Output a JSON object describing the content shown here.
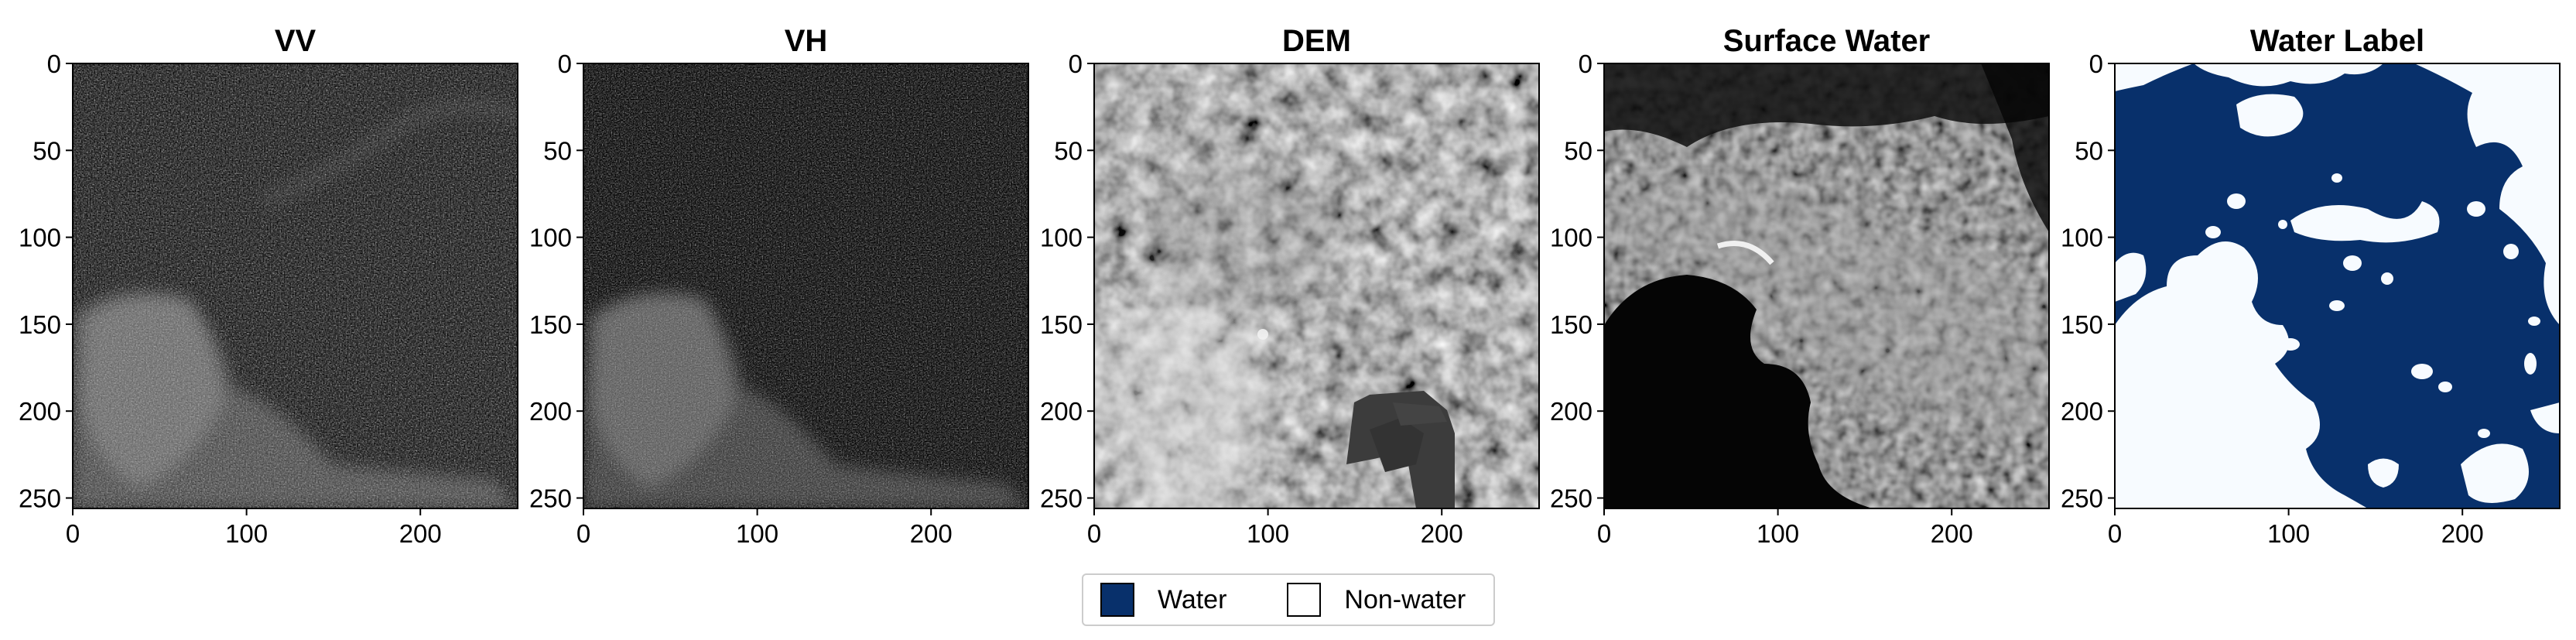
{
  "panels": [
    {
      "title": "VV",
      "kind": "sar-vv"
    },
    {
      "title": "VH",
      "kind": "sar-vh"
    },
    {
      "title": "DEM",
      "kind": "dem"
    },
    {
      "title": "Surface Water",
      "kind": "surface-water"
    },
    {
      "title": "Water Label",
      "kind": "water-label"
    }
  ],
  "axes": {
    "x_ticks": [
      "0",
      "100",
      "200"
    ],
    "x_tick_values": [
      0,
      100,
      200
    ],
    "y_ticks": [
      "0",
      "50",
      "100",
      "150",
      "200",
      "250"
    ],
    "y_tick_values": [
      0,
      50,
      100,
      150,
      200,
      250
    ],
    "xlim": [
      0,
      256
    ],
    "ylim": [
      256,
      0
    ]
  },
  "legend": {
    "placement": "bottom-center",
    "items": [
      {
        "label": "Water",
        "color": "#08306b"
      },
      {
        "label": "Non-water",
        "color": "#ffffff"
      }
    ]
  },
  "colors": {
    "water": "#08306b",
    "non_water": "#f7fbff",
    "frame": "#000000"
  }
}
